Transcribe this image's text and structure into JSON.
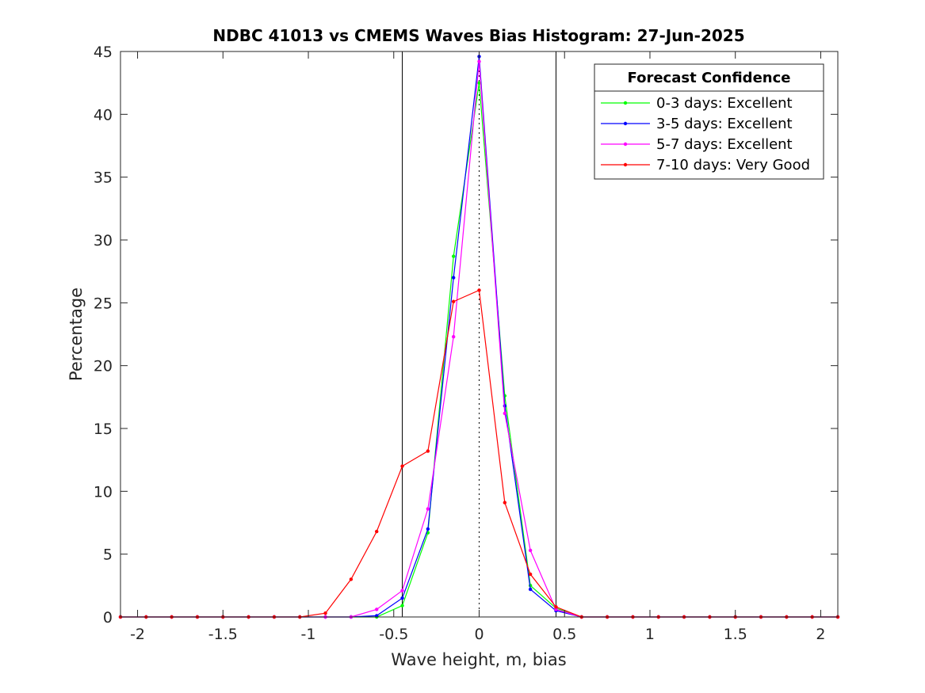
{
  "chart_data": {
    "type": "line",
    "title": "NDBC 41013 vs CMEMS Waves Bias Histogram: 27-Jun-2025",
    "xlabel": "Wave height, m, bias",
    "ylabel": "Percentage",
    "xlim": [
      -2.1,
      2.1
    ],
    "ylim": [
      0,
      45
    ],
    "xticks": [
      -2,
      -1.5,
      -1,
      -0.5,
      0,
      0.5,
      1,
      1.5,
      2
    ],
    "xtick_labels": [
      "-2",
      "-1.5",
      "-1",
      "-0.5",
      "0",
      "0.5",
      "1",
      "1.5",
      "2"
    ],
    "yticks": [
      0,
      5,
      10,
      15,
      20,
      25,
      30,
      35,
      40,
      45
    ],
    "ytick_labels": [
      "0",
      "5",
      "10",
      "15",
      "20",
      "25",
      "30",
      "35",
      "40",
      "45"
    ],
    "vertical_lines": [
      -0.45,
      0.45
    ],
    "zero_line": 0,
    "grid": false,
    "legend": {
      "title": "Forecast Confidence",
      "position": "top-right"
    },
    "x": [
      -2.1,
      -1.95,
      -1.8,
      -1.65,
      -1.5,
      -1.35,
      -1.2,
      -1.05,
      -0.9,
      -0.75,
      -0.6,
      -0.45,
      -0.3,
      -0.15,
      0,
      0.15,
      0.3,
      0.45,
      0.6,
      0.75,
      0.9,
      1.05,
      1.2,
      1.35,
      1.5,
      1.65,
      1.8,
      1.95,
      2.1
    ],
    "series": [
      {
        "name": "0-3 days: Excellent",
        "color": "#00ff00",
        "values": [
          0,
          0,
          0,
          0,
          0,
          0,
          0,
          0,
          0,
          0,
          0,
          0.9,
          6.7,
          28.7,
          42.5,
          17.6,
          2.5,
          0.7,
          0,
          0,
          0,
          0,
          0,
          0,
          0,
          0,
          0,
          0,
          0
        ]
      },
      {
        "name": "3-5 days: Excellent",
        "color": "#0000ff",
        "values": [
          0,
          0,
          0,
          0,
          0,
          0,
          0,
          0,
          0,
          0,
          0.1,
          1.5,
          7.0,
          27.0,
          44.6,
          16.8,
          2.2,
          0.5,
          0,
          0,
          0,
          0,
          0,
          0,
          0,
          0,
          0,
          0,
          0
        ]
      },
      {
        "name": "5-7 days: Excellent",
        "color": "#ff00ff",
        "values": [
          0,
          0,
          0,
          0,
          0,
          0,
          0,
          0,
          0,
          0,
          0.6,
          2.1,
          8.6,
          22.3,
          44.2,
          16.2,
          5.3,
          0.6,
          0,
          0,
          0,
          0,
          0,
          0,
          0,
          0,
          0,
          0,
          0
        ]
      },
      {
        "name": "7-10 days: Very Good",
        "color": "#ff0000",
        "values": [
          0,
          0,
          0,
          0,
          0,
          0,
          0,
          0,
          0.3,
          3.0,
          6.8,
          12.0,
          13.2,
          25.1,
          26.0,
          9.1,
          3.4,
          0.8,
          0,
          0,
          0,
          0,
          0,
          0,
          0,
          0,
          0,
          0,
          0
        ]
      }
    ]
  }
}
